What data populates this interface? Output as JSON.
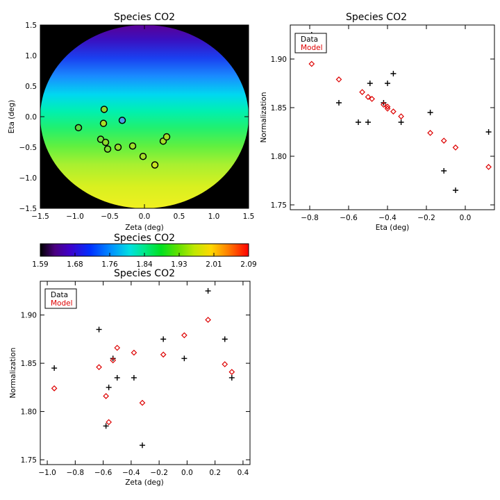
{
  "chart_data": [
    {
      "id": "map",
      "type": "heatmap",
      "title": "Species CO2",
      "xlabel": "Zeta (deg)",
      "ylabel": "Eta (deg)",
      "xlim": [
        -1.5,
        1.5
      ],
      "ylim": [
        -1.5,
        1.5
      ],
      "xticks": [
        -1.5,
        -1.0,
        -0.5,
        0.0,
        0.5,
        1.0,
        1.5
      ],
      "yticks": [
        -1.5,
        -1.0,
        -0.5,
        0.0,
        0.5,
        1.0,
        1.5
      ],
      "xtick_labels": [
        "−1.5",
        "−1.0",
        "−0.5",
        "0.0",
        "0.5",
        "1.0",
        "1.5"
      ],
      "ytick_labels": [
        "−1.5",
        "−1.0",
        "−0.5",
        "0.0",
        "0.5",
        "1.0",
        "1.5"
      ],
      "field_radius_deg": 1.5,
      "background_color": "#000000",
      "stations": [
        {
          "zeta": -0.95,
          "eta": -0.18,
          "color": "#5ad840"
        },
        {
          "zeta": -0.58,
          "eta": 0.12,
          "color": "#8cdd2e"
        },
        {
          "zeta": -0.59,
          "eta": -0.11,
          "color": "#a8e026"
        },
        {
          "zeta": -0.32,
          "eta": -0.06,
          "color": "#4a9fe8"
        },
        {
          "zeta": -0.63,
          "eta": -0.37,
          "color": "#6ee03a"
        },
        {
          "zeta": -0.56,
          "eta": -0.42,
          "color": "#8cdd2e"
        },
        {
          "zeta": -0.53,
          "eta": -0.53,
          "color": "#7fde34"
        },
        {
          "zeta": -0.38,
          "eta": -0.5,
          "color": "#96df2c"
        },
        {
          "zeta": -0.17,
          "eta": -0.48,
          "color": "#9ce02a"
        },
        {
          "zeta": -0.02,
          "eta": -0.65,
          "color": "#a4e028"
        },
        {
          "zeta": 0.15,
          "eta": -0.79,
          "color": "#c8e420"
        },
        {
          "zeta": 0.27,
          "eta": -0.4,
          "color": "#a0e028"
        },
        {
          "zeta": 0.32,
          "eta": -0.33,
          "color": "#a0e028"
        }
      ]
    },
    {
      "id": "colorbar",
      "type": "colorbar",
      "title": "Species CO2",
      "range": [
        1.59,
        2.09
      ],
      "tick_labels": [
        "1.59",
        "1.68",
        "1.76",
        "1.84",
        "1.93",
        "2.01",
        "2.09"
      ]
    },
    {
      "id": "eta_plot",
      "type": "scatter",
      "title": "Species CO2",
      "xlabel": "Eta (deg)",
      "ylabel": "Normalization",
      "xlim": [
        -0.9,
        0.15
      ],
      "ylim": [
        1.745,
        1.935
      ],
      "xticks": [
        -0.8,
        -0.6,
        -0.4,
        -0.2,
        0.0
      ],
      "xtick_labels": [
        "−0.8",
        "−0.6",
        "−0.4",
        "−0.2",
        "0.0"
      ],
      "yticks": [
        1.75,
        1.8,
        1.85,
        1.9
      ],
      "ytick_labels": [
        "1.75",
        "1.80",
        "1.85",
        "1.90"
      ],
      "legend": {
        "position": "top-left",
        "entries": [
          {
            "label": "Data",
            "color": "#000000"
          },
          {
            "label": "Model",
            "color": "#dd0000"
          }
        ]
      },
      "series": [
        {
          "name": "Data",
          "marker": "plus",
          "color": "#000000",
          "x": [
            -0.79,
            -0.65,
            -0.55,
            -0.5,
            -0.49,
            -0.42,
            -0.4,
            -0.37,
            -0.33,
            -0.18,
            -0.11,
            -0.05,
            0.12
          ],
          "y": [
            1.925,
            1.855,
            1.835,
            1.835,
            1.875,
            1.855,
            1.875,
            1.885,
            1.835,
            1.845,
            1.785,
            1.765,
            1.825
          ]
        },
        {
          "name": "Model",
          "marker": "diamond",
          "color": "#dd0000",
          "x": [
            -0.79,
            -0.65,
            -0.53,
            -0.5,
            -0.48,
            -0.42,
            -0.4,
            -0.4,
            -0.37,
            -0.33,
            -0.18,
            -0.11,
            -0.05,
            0.12
          ],
          "y": [
            1.895,
            1.879,
            1.866,
            1.861,
            1.859,
            1.853,
            1.851,
            1.849,
            1.846,
            1.841,
            1.824,
            1.816,
            1.809,
            1.789
          ]
        }
      ]
    },
    {
      "id": "zeta_plot",
      "type": "scatter",
      "title": "Species CO2",
      "xlabel": "Zeta (deg)",
      "ylabel": "Normalization",
      "xlim": [
        -1.05,
        0.45
      ],
      "ylim": [
        1.745,
        1.935
      ],
      "xticks": [
        -1.0,
        -0.8,
        -0.6,
        -0.4,
        -0.2,
        0.0,
        0.2,
        0.4
      ],
      "xtick_labels": [
        "−1.0",
        "−0.8",
        "−0.6",
        "−0.4",
        "−0.2",
        "0.0",
        "0.2",
        "0.4"
      ],
      "yticks": [
        1.75,
        1.8,
        1.85,
        1.9
      ],
      "ytick_labels": [
        "1.75",
        "1.80",
        "1.85",
        "1.90"
      ],
      "legend": {
        "position": "top-left",
        "entries": [
          {
            "label": "Data",
            "color": "#000000"
          },
          {
            "label": "Model",
            "color": "#dd0000"
          }
        ]
      },
      "series": [
        {
          "name": "Data",
          "marker": "plus",
          "color": "#000000",
          "x": [
            -0.95,
            -0.63,
            -0.58,
            -0.56,
            -0.53,
            -0.5,
            -0.38,
            -0.32,
            -0.17,
            -0.02,
            0.15,
            0.27,
            0.32
          ],
          "y": [
            1.845,
            1.885,
            1.785,
            1.825,
            1.855,
            1.835,
            1.835,
            1.765,
            1.875,
            1.855,
            1.925,
            1.875,
            1.835
          ]
        },
        {
          "name": "Model",
          "marker": "diamond",
          "color": "#dd0000",
          "x": [
            -0.95,
            -0.63,
            -0.58,
            -0.56,
            -0.53,
            -0.5,
            -0.38,
            -0.32,
            -0.17,
            -0.02,
            0.15,
            0.27,
            0.32
          ],
          "y": [
            1.824,
            1.846,
            1.816,
            1.789,
            1.853,
            1.866,
            1.861,
            1.809,
            1.859,
            1.879,
            1.895,
            1.849,
            1.841
          ]
        }
      ]
    }
  ]
}
